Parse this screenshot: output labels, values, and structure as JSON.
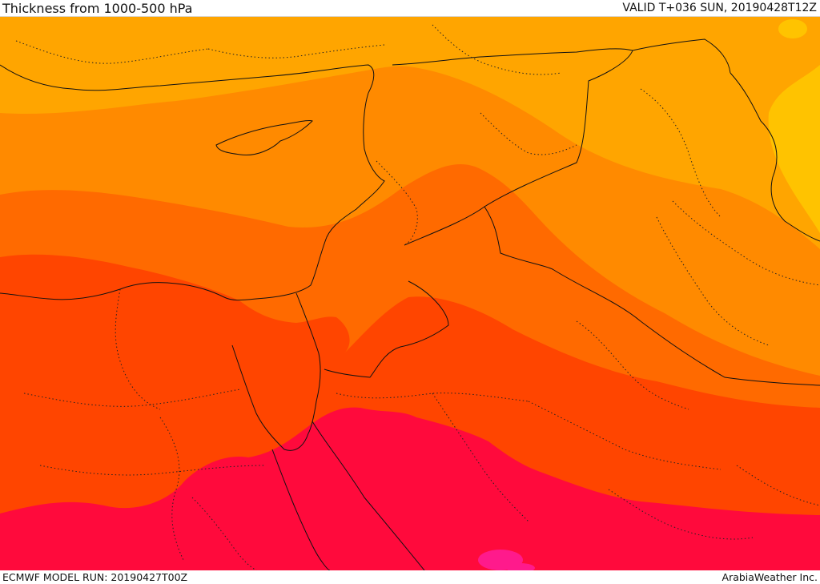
{
  "header": {
    "title": "Thickness from 1000-500 hPa",
    "valid": "VALID T+036 SUN, 20190428T12Z"
  },
  "footer": {
    "model_run": "ECMWF MODEL RUN: 20190427T00Z",
    "credit": "ArabiaWeather Inc."
  },
  "colors": {
    "band_1": "#FFC300",
    "band_2": "#FFA500",
    "band_3": "#FF8A00",
    "band_4": "#FF6A00",
    "band_5": "#FF4500",
    "band_6": "#FF0A3C",
    "band_7": "#FF1A8C",
    "border_line": "#111111"
  }
}
